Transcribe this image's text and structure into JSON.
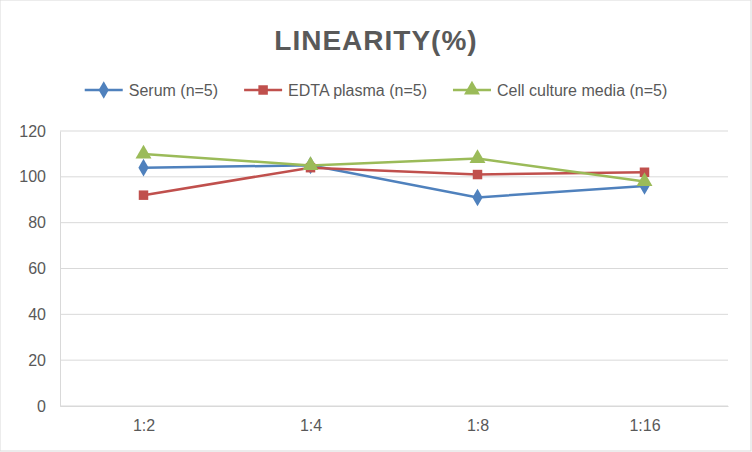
{
  "chart_data": {
    "type": "line",
    "title": "LINEARITY(%)",
    "categories": [
      "1:2",
      "1:4",
      "1:8",
      "1:16"
    ],
    "series": [
      {
        "name": "Serum (n=5)",
        "color": "#4f81bd",
        "marker": "diamond",
        "line_style": "solid",
        "values": [
          104,
          105,
          91,
          96
        ]
      },
      {
        "name": "EDTA plasma (n=5)",
        "color": "#c0504d",
        "marker": "square",
        "line_style": "solid",
        "values": [
          92,
          104,
          101,
          102
        ]
      },
      {
        "name": "Cell culture media (n=5)",
        "color": "#9bbb59",
        "marker": "triangle",
        "line_style": "solid",
        "values": [
          110,
          105,
          108,
          98
        ]
      }
    ],
    "ylim": [
      0,
      120
    ],
    "yticks": [
      0,
      20,
      40,
      60,
      80,
      100,
      120
    ],
    "grid": true,
    "legend": "top"
  }
}
